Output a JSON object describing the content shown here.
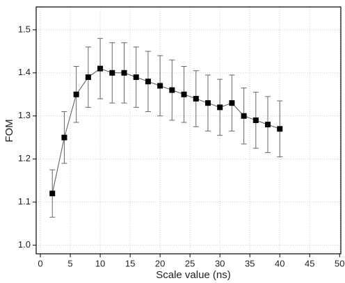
{
  "chart_data": {
    "type": "errorbar-line",
    "xlabel": "Scale value (ns)",
    "ylabel": "FOM",
    "x": [
      2,
      4,
      6,
      8,
      10,
      12,
      14,
      16,
      18,
      20,
      22,
      24,
      26,
      28,
      30,
      32,
      34,
      36,
      38,
      40
    ],
    "values": [
      1.12,
      1.25,
      1.35,
      1.39,
      1.41,
      1.4,
      1.4,
      1.39,
      1.38,
      1.37,
      1.36,
      1.35,
      1.34,
      1.33,
      1.32,
      1.33,
      1.3,
      1.29,
      1.28,
      1.27
    ],
    "errors": [
      0.055,
      0.06,
      0.065,
      0.07,
      0.07,
      0.07,
      0.07,
      0.07,
      0.07,
      0.07,
      0.07,
      0.065,
      0.065,
      0.065,
      0.065,
      0.065,
      0.065,
      0.065,
      0.065,
      0.065
    ],
    "color": "#000000",
    "xlim": [
      -0.7,
      50.2
    ],
    "xticks": [
      0,
      5,
      10,
      15,
      20,
      25,
      30,
      35,
      40,
      45,
      50
    ],
    "ylim": [
      0.98,
      1.553
    ],
    "yticks": [
      {
        "value": 1,
        "label": "1.0"
      },
      1.1,
      1.2,
      1.3,
      1.4,
      1.5
    ],
    "grid": true
  }
}
